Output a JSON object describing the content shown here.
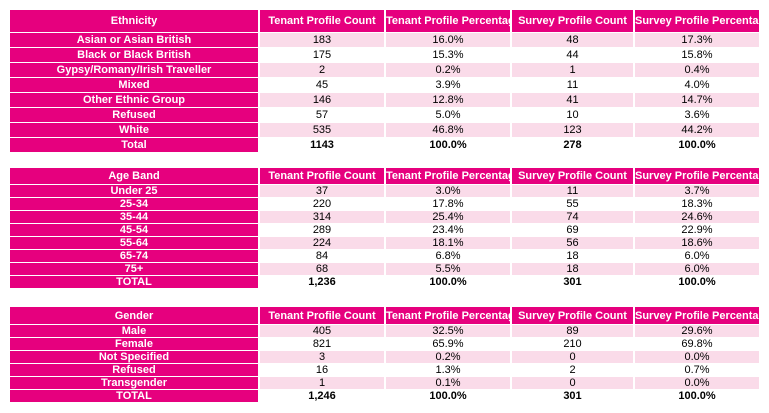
{
  "ethnicity": {
    "headers": [
      "Ethnicity",
      "Tenant Profile Count",
      "Tenant Profile Percentage",
      "Survey Profile Count",
      "Survey Profile Percentage"
    ],
    "rows": [
      [
        "Asian or Asian British",
        "183",
        "16.0%",
        "48",
        "17.3%"
      ],
      [
        "Black or Black British",
        "175",
        "15.3%",
        "44",
        "15.8%"
      ],
      [
        "Gypsy/Romany/Irish Traveller",
        "2",
        "0.2%",
        "1",
        "0.4%"
      ],
      [
        "Mixed",
        "45",
        "3.9%",
        "11",
        "4.0%"
      ],
      [
        "Other Ethnic Group",
        "146",
        "12.8%",
        "41",
        "14.7%"
      ],
      [
        "Refused",
        "57",
        "5.0%",
        "10",
        "3.6%"
      ],
      [
        "White",
        "535",
        "46.8%",
        "123",
        "44.2%"
      ],
      [
        "Total",
        "1143",
        "100.0%",
        "278",
        "100.0%"
      ]
    ]
  },
  "age": {
    "headers": [
      "Age Band",
      "Tenant Profile Count",
      "Tenant Profile Percentage",
      "Survey Profile Count",
      "Survey Profile Percentage"
    ],
    "rows": [
      [
        "Under 25",
        "37",
        "3.0%",
        "11",
        "3.7%"
      ],
      [
        "25-34",
        "220",
        "17.8%",
        "55",
        "18.3%"
      ],
      [
        "35-44",
        "314",
        "25.4%",
        "74",
        "24.6%"
      ],
      [
        "45-54",
        "289",
        "23.4%",
        "69",
        "22.9%"
      ],
      [
        "55-64",
        "224",
        "18.1%",
        "56",
        "18.6%"
      ],
      [
        "65-74",
        "84",
        "6.8%",
        "18",
        "6.0%"
      ],
      [
        "75+",
        "68",
        "5.5%",
        "18",
        "6.0%"
      ],
      [
        "TOTAL",
        "1,236",
        "100.0%",
        "301",
        "100.0%"
      ]
    ]
  },
  "gender": {
    "headers": [
      "Gender",
      "Tenant Profile Count",
      "Tenant Profile Percentage",
      "Survey Profile Count",
      "Survey Profile Percentage"
    ],
    "rows": [
      [
        "Male",
        "405",
        "32.5%",
        "89",
        "29.6%"
      ],
      [
        "Female",
        "821",
        "65.9%",
        "210",
        "69.8%"
      ],
      [
        "Not Specified",
        "3",
        "0.2%",
        "0",
        "0.0%"
      ],
      [
        "Refused",
        "16",
        "1.3%",
        "2",
        "0.7%"
      ],
      [
        "Transgender",
        "1",
        "0.1%",
        "0",
        "0.0%"
      ],
      [
        "TOTAL",
        "1,246",
        "100.0%",
        "301",
        "100.0%"
      ]
    ]
  },
  "colors": {
    "header": "#e6007e",
    "stripe": "#fadbe9"
  }
}
